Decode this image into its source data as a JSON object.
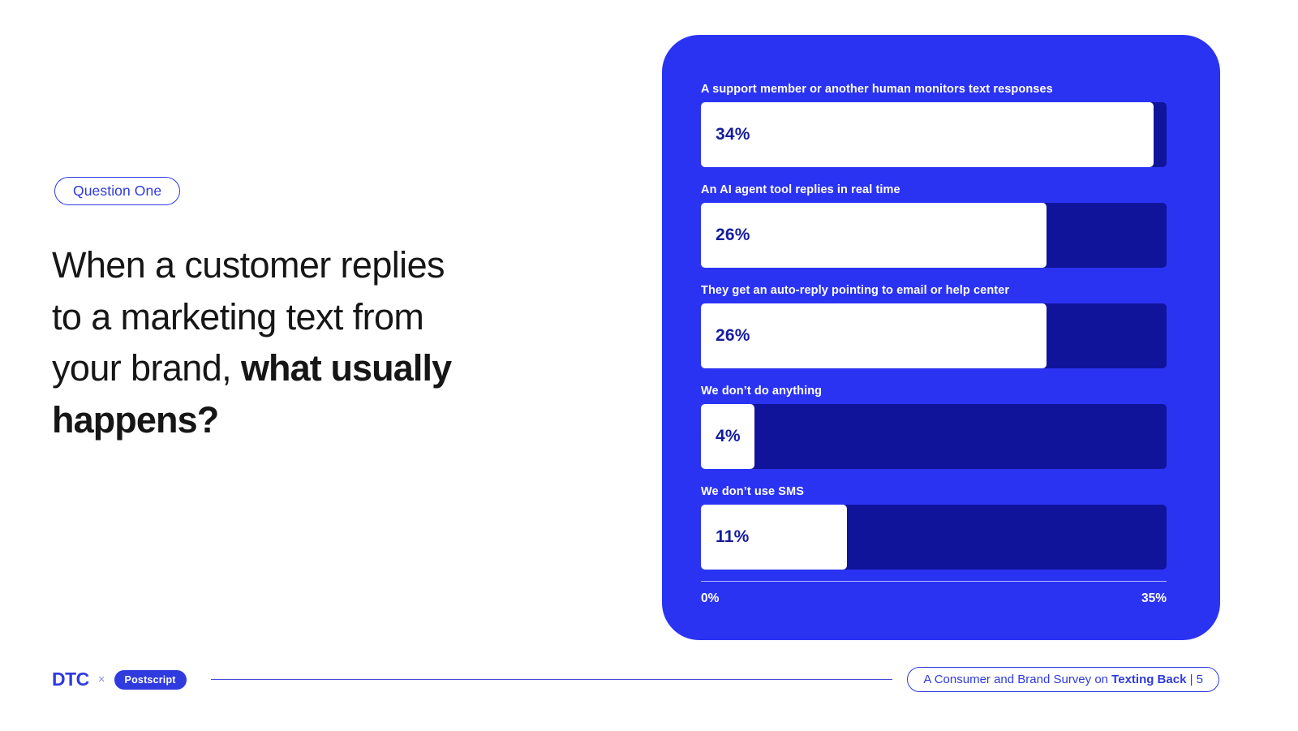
{
  "colors": {
    "panel_blue": "#2B33F3",
    "bar_track_navy": "#10149B",
    "accent_blue": "#2F3ADF",
    "headline_text": "#161616",
    "bar_fill_white": "#FFFFFF",
    "value_label_navy": "#151C9E"
  },
  "question_badge": {
    "label": "Question One"
  },
  "headline": {
    "full_text": "When a customer replies to a marketing text from your brand, what usually happens?",
    "lines": [
      {
        "regular": "When a customer replies",
        "bold": ""
      },
      {
        "regular": "to a marketing text from",
        "bold": ""
      },
      {
        "regular": "your brand, ",
        "bold": "what usually"
      },
      {
        "regular": "",
        "bold": "happens?"
      }
    ]
  },
  "chart_data": {
    "type": "bar",
    "orientation": "horizontal",
    "title": "",
    "categories": [
      "A support member or another human monitors text responses",
      "An AI agent tool replies in real time",
      "They get an auto-reply pointing to email or help center",
      "We don’t do anything",
      "We don’t use SMS"
    ],
    "values": [
      34,
      26,
      26,
      4,
      11
    ],
    "value_labels": [
      "34%",
      "26%",
      "26%",
      "4%",
      "11%"
    ],
    "xlim": [
      0,
      35
    ],
    "x_axis_ticks": [
      "0%",
      "35%"
    ],
    "legend": false,
    "grid": false
  },
  "footer": {
    "dtc_logo": "DTC",
    "separator": "×",
    "postscript_logo": "Postscript",
    "survey_badge": {
      "prefix": "A Consumer and Brand Survey on ",
      "bold": "Texting Back",
      "suffix": " | 5"
    }
  }
}
